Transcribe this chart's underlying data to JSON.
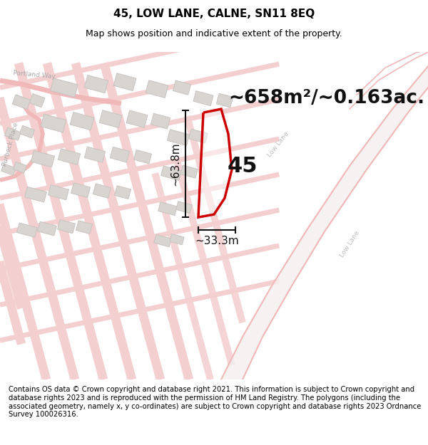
{
  "title": "45, LOW LANE, CALNE, SN11 8EQ",
  "subtitle": "Map shows position and indicative extent of the property.",
  "area_text": "~658m²/~0.163ac.",
  "number_label": "45",
  "dim_width": "~33.3m",
  "dim_height": "~63.8m",
  "footer": "Contains OS data © Crown copyright and database right 2021. This information is subject to Crown copyright and database rights 2023 and is reproduced with the permission of HM Land Registry. The polygons (including the associated geometry, namely x, y co-ordinates) are subject to Crown copyright and database rights 2023 Ordnance Survey 100026316.",
  "bg_color": "#ffffff",
  "road_line_color": "#f0b8b8",
  "road_fill_color": "#f8e8e8",
  "building_face_color": "#d8d4d0",
  "building_edge_color": "#c8c4c0",
  "property_color": "#cc0000",
  "dim_line_color": "#111111",
  "text_color": "#111111",
  "label_color": "#aaaaaa",
  "title_fontsize": 11,
  "subtitle_fontsize": 9,
  "area_fontsize": 19,
  "label_fontsize": 22,
  "dim_fontsize": 11,
  "road_label_fontsize": 6.5,
  "footer_fontsize": 7.2
}
